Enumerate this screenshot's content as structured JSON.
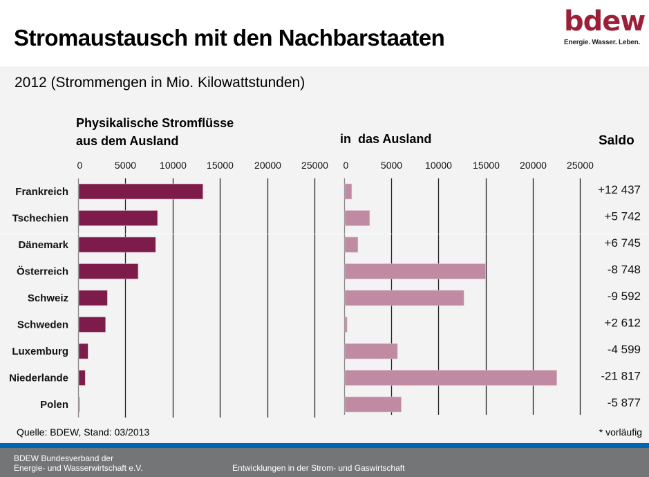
{
  "header": {
    "title": "Stromaustausch mit den Nachbarstaaten",
    "logo_word": "bdew",
    "logo_tagline": "Energie. Wasser. Leben.",
    "brand_color": "#9c1f38"
  },
  "subtitle": "2012 (Strommengen in Mio. Kilowattstunden)",
  "chart_data": {
    "type": "bar",
    "orientation": "horizontal",
    "unit": "Mio. kWh",
    "categories": [
      "Frankreich",
      "Tschechien",
      "Dänemark",
      "Österreich",
      "Schweiz",
      "Schweden",
      "Luxemburg",
      "Niederlande",
      "Polen"
    ],
    "series": [
      {
        "name": "Physikalische Stromflüsse aus dem Ausland",
        "heading_lines": [
          "Physikalische Stromflüsse",
          "aus dem Ausland"
        ],
        "color": "#7d1c4a",
        "values": [
          13200,
          8400,
          8200,
          6350,
          3100,
          2900,
          1050,
          750,
          150
        ],
        "xlim": [
          0,
          25000
        ],
        "ticks": [
          0,
          5000,
          10000,
          15000,
          20000,
          25000
        ]
      },
      {
        "name": "in das Ausland",
        "heading": "in  das Ausland",
        "color": "#c08aa2",
        "values": [
          800,
          2700,
          1450,
          15000,
          12700,
          300,
          5650,
          22550,
          6050
        ],
        "xlim": [
          0,
          25000
        ],
        "ticks": [
          0,
          5000,
          10000,
          15000,
          20000,
          25000
        ]
      }
    ],
    "saldo": {
      "heading": "Saldo",
      "values": [
        12437,
        5742,
        6745,
        -8748,
        -9592,
        2612,
        -4599,
        -21817,
        -5877
      ],
      "labels": [
        "+12 437",
        "+5 742",
        "+6 745",
        "-8 748",
        "-9 592",
        "+2 612",
        "-4 599",
        "-21 817",
        "-5 877"
      ]
    },
    "grid": true,
    "legend": "none"
  },
  "source": "Quelle: BDEW, Stand: 03/2013",
  "note": "* vorläufig",
  "footer": {
    "org_line1": "BDEW Bundesverband der",
    "org_line2": "Energie- und Wasserwirtschaft e.V.",
    "topic": "Entwicklungen in der Strom- und Gaswirtschaft",
    "band_color": "#0066b3"
  }
}
